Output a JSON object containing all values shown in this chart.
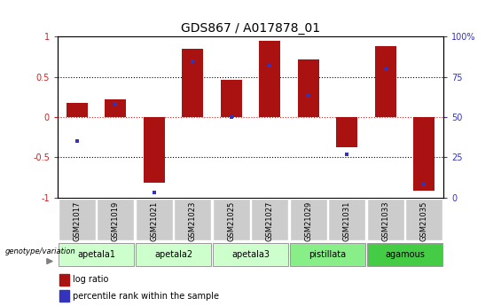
{
  "title": "GDS867 / A017878_01",
  "samples": [
    "GSM21017",
    "GSM21019",
    "GSM21021",
    "GSM21023",
    "GSM21025",
    "GSM21027",
    "GSM21029",
    "GSM21031",
    "GSM21033",
    "GSM21035"
  ],
  "log_ratio": [
    0.18,
    0.22,
    -0.82,
    0.85,
    0.46,
    0.95,
    0.72,
    -0.38,
    0.88,
    -0.92
  ],
  "percentile_rank": [
    35,
    58,
    3,
    85,
    50,
    82,
    63,
    27,
    80,
    8
  ],
  "groups": [
    {
      "label": "apetala1",
      "samples": [
        0,
        1
      ],
      "color": "#ccffcc"
    },
    {
      "label": "apetala2",
      "samples": [
        2,
        3
      ],
      "color": "#ccffcc"
    },
    {
      "label": "apetala3",
      "samples": [
        4,
        5
      ],
      "color": "#ccffcc"
    },
    {
      "label": "pistillata",
      "samples": [
        6,
        7
      ],
      "color": "#88ee88"
    },
    {
      "label": "agamous",
      "samples": [
        8,
        9
      ],
      "color": "#44cc44"
    }
  ],
  "bar_color_red": "#aa1111",
  "bar_color_blue": "#3333bb",
  "ylim": [
    -1,
    1
  ],
  "yticks_left": [
    -1,
    -0.5,
    0,
    0.5,
    1
  ],
  "yticks_right": [
    0,
    25,
    50,
    75,
    100
  ],
  "hline_color_red": "#cc2222",
  "sample_box_color": "#cccccc",
  "bar_width": 0.55,
  "title_fontsize": 10,
  "tick_fontsize": 7,
  "label_fontsize": 7,
  "legend_fontsize": 7
}
